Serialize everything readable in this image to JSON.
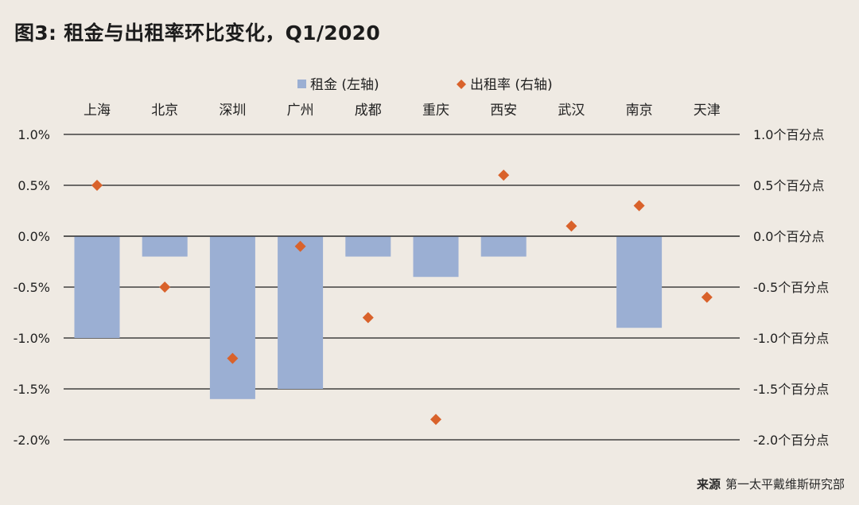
{
  "title": "图3: 租金与出租率环比变化，Q1/2020",
  "source": {
    "label": "来源",
    "text": "第一太平戴维斯研究部"
  },
  "colors": {
    "bar": "#9bafd3",
    "marker": "#d9622b",
    "grid": "#1f1f1f",
    "background": "#efeae3"
  },
  "chart_data": {
    "type": "bar",
    "title": "图3: 租金与出租率环比变化，Q1/2020",
    "categories": [
      "上海",
      "北京",
      "深圳",
      "广州",
      "成都",
      "重庆",
      "西安",
      "武汉",
      "南京",
      "天津"
    ],
    "legend_position": "top-center",
    "grid": true,
    "series": [
      {
        "name": "租金 (左轴)",
        "type": "bar",
        "axis": "left",
        "values": [
          -1.0,
          -0.2,
          -1.6,
          -1.5,
          -0.2,
          -0.4,
          -0.2,
          0.0,
          -0.9,
          0.0
        ]
      },
      {
        "name": "出租率 (右轴)",
        "type": "scatter",
        "marker": "diamond",
        "axis": "right",
        "values": [
          0.5,
          -0.5,
          -1.2,
          -0.1,
          -0.8,
          -1.8,
          0.6,
          0.1,
          0.3,
          -0.6
        ]
      }
    ],
    "left_axis": {
      "ylim": [
        -2.0,
        1.0
      ],
      "ticks": [
        1.0,
        0.5,
        0.0,
        -0.5,
        -1.0,
        -1.5,
        -2.0
      ],
      "tick_labels": [
        "1.0%",
        "0.5%",
        "0.0%",
        "-0.5%",
        "-1.0%",
        "-1.5%",
        "-2.0%"
      ]
    },
    "right_axis": {
      "ylim": [
        -2.0,
        1.0
      ],
      "ticks": [
        1.0,
        0.5,
        0.0,
        -0.5,
        -1.0,
        -1.5,
        -2.0
      ],
      "tick_labels": [
        "1.0个百分点",
        "0.5个百分点",
        "0.0个百分点",
        "-0.5个百分点",
        "-1.0个百分点",
        "-1.5个百分点",
        "-2.0个百分点"
      ]
    }
  }
}
